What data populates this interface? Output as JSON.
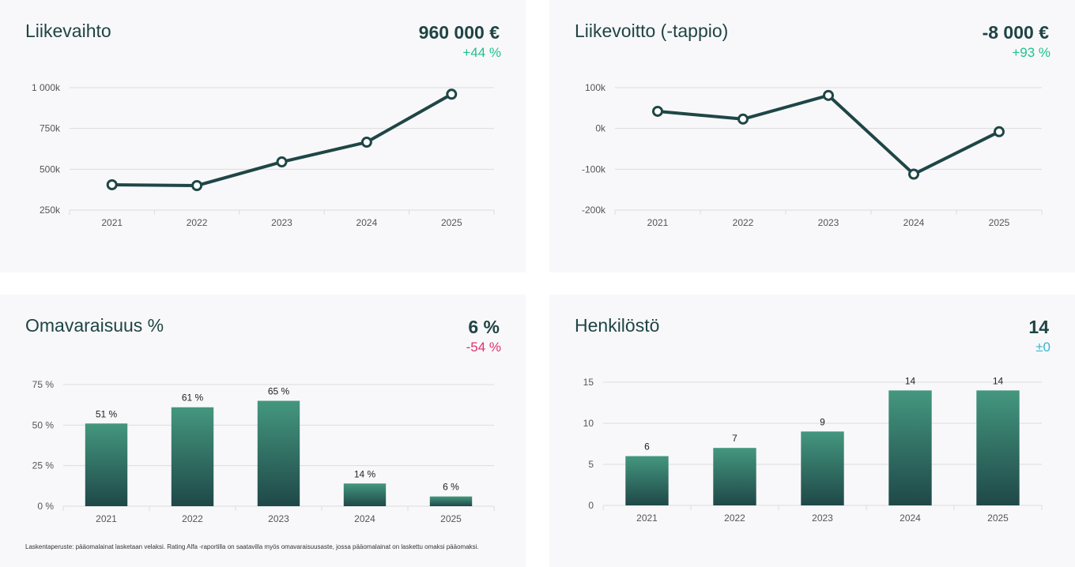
{
  "colors": {
    "line": "#1f4646",
    "bar_top": "#44977f",
    "bar_bottom": "#1f4848",
    "positive": "#1fc18d",
    "negative": "#e0306a",
    "neutral": "#3bb6cc",
    "grid": "#dcdcde"
  },
  "panels": [
    {
      "title": "Liikevaihto",
      "value": "960 000 €",
      "change": "+44 %",
      "change_kind": "positive"
    },
    {
      "title": "Liikevoitto (-tappio)",
      "value": "-8 000 €",
      "change": "+93 %",
      "change_kind": "positive"
    },
    {
      "title": "Omavaraisuus %",
      "value": "6 %",
      "change": "-54 %",
      "change_kind": "negative",
      "footnote": "Laskentaperuste: pääomalainat lasketaan velaksi. Rating Alfa -raportilla on saatavilla myös omavaraisuusaste, jossa pääomalainat on laskettu omaksi pääomaksi."
    },
    {
      "title": "Henkilöstö",
      "value": "14",
      "change": "±0",
      "change_kind": "neutral"
    }
  ],
  "chart_data": [
    {
      "type": "line",
      "categories": [
        "2021",
        "2022",
        "2023",
        "2024",
        "2025"
      ],
      "values": [
        405000,
        400000,
        545000,
        666000,
        960000
      ],
      "ylim": [
        250000,
        1000000
      ],
      "yticks": [
        250000,
        500000,
        750000,
        1000000
      ],
      "ytick_labels": [
        "250k",
        "500k",
        "750k",
        "1 000k"
      ],
      "grid": true
    },
    {
      "type": "line",
      "categories": [
        "2021",
        "2022",
        "2023",
        "2024",
        "2025"
      ],
      "values": [
        42000,
        23000,
        81000,
        -112000,
        -8000
      ],
      "ylim": [
        -200000,
        100000
      ],
      "yticks": [
        -200000,
        -100000,
        0,
        100000
      ],
      "ytick_labels": [
        "-200k",
        "-100k",
        "0k",
        "100k"
      ],
      "grid": true
    },
    {
      "type": "bar",
      "categories": [
        "2021",
        "2022",
        "2023",
        "2024",
        "2025"
      ],
      "values": [
        51,
        61,
        65,
        14,
        6
      ],
      "data_labels": [
        "51 %",
        "61 %",
        "65 %",
        "14 %",
        "6 %"
      ],
      "ylim": [
        0,
        75
      ],
      "yticks": [
        0,
        25,
        50,
        75
      ],
      "ytick_labels": [
        "0 %",
        "25 %",
        "50 %",
        "75 %"
      ],
      "grid": true
    },
    {
      "type": "bar",
      "categories": [
        "2021",
        "2022",
        "2023",
        "2024",
        "2025"
      ],
      "values": [
        6,
        7,
        9,
        14,
        14
      ],
      "data_labels": [
        "6",
        "7",
        "9",
        "14",
        "14"
      ],
      "ylim": [
        0,
        15
      ],
      "yticks": [
        0,
        5,
        10,
        15
      ],
      "ytick_labels": [
        "0",
        "5",
        "10",
        "15"
      ],
      "grid": true
    }
  ]
}
